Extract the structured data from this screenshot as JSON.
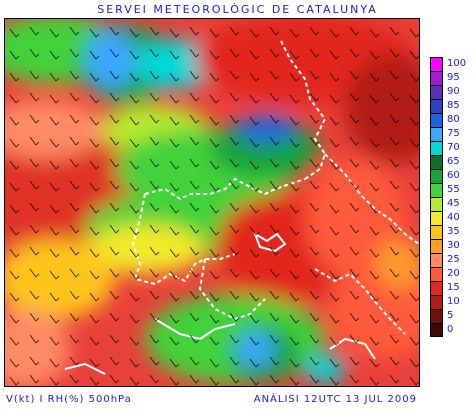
{
  "header": {
    "title": "SERVEI METEOROLÒGIC DE CATALUNYA"
  },
  "footer": {
    "variables": "V(kt) I RH(%) 500hPa",
    "analysis": "ANÀLISI 12UTC 13 JUL 2009"
  },
  "legend": {
    "items": [
      {
        "label": "100",
        "color": "#ff00ff"
      },
      {
        "label": "95",
        "color": "#a41bd6"
      },
      {
        "label": "90",
        "color": "#5c2fb8"
      },
      {
        "label": "85",
        "color": "#2f3fc4"
      },
      {
        "label": "80",
        "color": "#1c63e0"
      },
      {
        "label": "75",
        "color": "#3ba7ff"
      },
      {
        "label": "70",
        "color": "#00d8d8"
      },
      {
        "label": "65",
        "color": "#0f6e2b"
      },
      {
        "label": "60",
        "color": "#19a33a"
      },
      {
        "label": "55",
        "color": "#43d23a"
      },
      {
        "label": "45",
        "color": "#b8ea2f"
      },
      {
        "label": "40",
        "color": "#f2ea2a"
      },
      {
        "label": "35",
        "color": "#ffc41a"
      },
      {
        "label": "30",
        "color": "#ff9a2c"
      },
      {
        "label": "25",
        "color": "#ff8a63"
      },
      {
        "label": "20",
        "color": "#ff5a3a"
      },
      {
        "label": "15",
        "color": "#e2271f"
      },
      {
        "label": "10",
        "color": "#b21b12"
      },
      {
        "label": "5",
        "color": "#6d1209"
      },
      {
        "label": "0",
        "color": "#3d0808"
      }
    ]
  }
}
